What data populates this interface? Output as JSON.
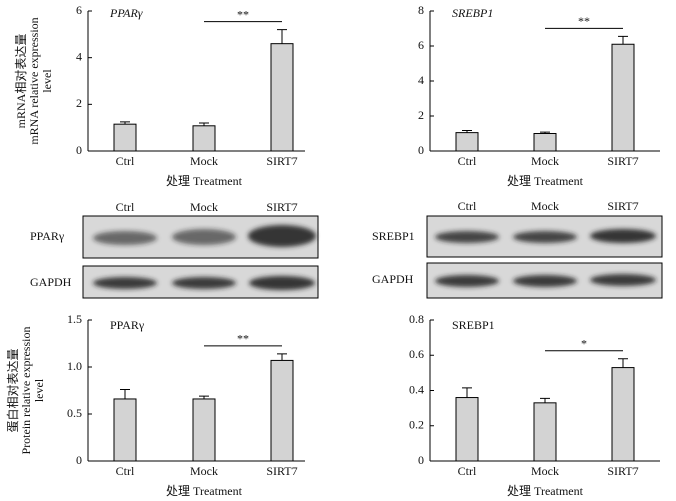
{
  "chart_data": [
    {
      "type": "bar",
      "title": "PPARγ",
      "title_italic": true,
      "ylabel": [
        "mRNA相对表达量",
        "mRNA relative expression",
        "level"
      ],
      "xlabel": "处理 Treatment",
      "categories": [
        "Ctrl",
        "Mock",
        "SIRT7"
      ],
      "values": [
        1.15,
        1.08,
        4.6
      ],
      "errors": [
        0.1,
        0.12,
        0.6
      ],
      "color": "#d3d3d3",
      "ylim": [
        0,
        6
      ],
      "yticks": [
        0,
        2,
        4,
        6
      ],
      "annotations": [
        {
          "text": "**",
          "categories": [
            "Mock",
            "SIRT7"
          ]
        }
      ]
    },
    {
      "type": "bar",
      "title": "SREBP1",
      "title_italic": true,
      "xlabel": "处理 Treatment",
      "categories": [
        "Ctrl",
        "Mock",
        "SIRT7"
      ],
      "values": [
        1.05,
        1.0,
        6.1
      ],
      "errors": [
        0.12,
        0.08,
        0.45
      ],
      "color": "#d3d3d3",
      "ylim": [
        0,
        8
      ],
      "yticks": [
        0,
        2,
        4,
        6,
        8
      ],
      "annotations": [
        {
          "text": "**",
          "categories": [
            "Mock",
            "SIRT7"
          ]
        }
      ]
    },
    {
      "type": "bar",
      "title": "PPARγ",
      "title_italic": false,
      "ylabel": [
        "蛋白相对表达量",
        "Protein relative expression",
        "level"
      ],
      "xlabel": "处理 Treatment",
      "categories": [
        "Ctrl",
        "Mock",
        "SIRT7"
      ],
      "values": [
        0.66,
        0.66,
        1.07
      ],
      "errors": [
        0.1,
        0.03,
        0.07
      ],
      "color": "#d3d3d3",
      "ylim": [
        0,
        1.5
      ],
      "yticks": [
        0,
        0.5,
        {
          "value": 1,
          "label": "1.0"
        },
        1.5
      ],
      "annotations": [
        {
          "text": "**",
          "categories": [
            "Mock",
            "SIRT7"
          ]
        }
      ]
    },
    {
      "type": "bar",
      "title": "SREBP1",
      "title_italic": false,
      "xlabel": "处理 Treatment",
      "categories": [
        "Ctrl",
        "Mock",
        "SIRT7"
      ],
      "values": [
        0.36,
        0.33,
        0.53
      ],
      "errors": [
        0.055,
        0.025,
        0.05
      ],
      "color": "#d3d3d3",
      "ylim": [
        0,
        0.8
      ],
      "yticks": [
        0,
        0.2,
        0.4,
        0.6,
        0.8
      ],
      "annotations": [
        {
          "text": "*",
          "categories": [
            "Mock",
            "SIRT7"
          ]
        }
      ]
    }
  ],
  "blots": [
    {
      "columns": [
        "Ctrl",
        "Mock",
        "SIRT7"
      ],
      "rows": [
        "PPARγ",
        "GAPDH"
      ]
    },
    {
      "columns": [
        "Ctrl",
        "Mock",
        "SIRT7"
      ],
      "rows": [
        "SREBP1",
        "GAPDH"
      ]
    }
  ]
}
